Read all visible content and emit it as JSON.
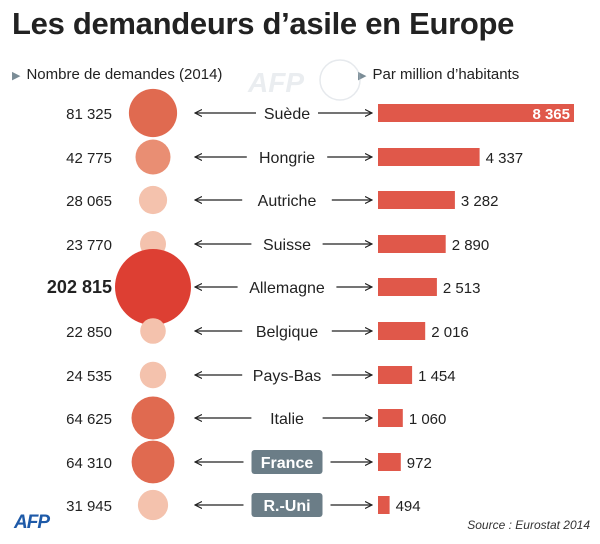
{
  "title": "Les demandeurs d’asile en Europe",
  "left_header": "Nombre de demandes (2014)",
  "right_header": "Par million d’habitants",
  "watermark": "AFP",
  "logo": "AFP",
  "source": "Source : Eurostat 2014",
  "colors": {
    "bubble_small": "#f4c2ad",
    "bubble_mid": "#e98e73",
    "bubble_large": "#e06a50",
    "bubble_max": "#dd3f33",
    "bar": "#e0584a",
    "highlight_label_bg": "#6b7d87",
    "arrow": "#222222"
  },
  "chart_data": {
    "type": "bar",
    "categories": [
      "Suède",
      "Hongrie",
      "Autriche",
      "Suisse",
      "Allemagne",
      "Belgique",
      "Pays-Bas",
      "Italie",
      "France",
      "R.-Uni"
    ],
    "demandes_labels": [
      "81 325",
      "42 775",
      "28 065",
      "23 770",
      "202 815",
      "22 850",
      "24 535",
      "64 625",
      "64 310",
      "31 945"
    ],
    "demandes": [
      81325,
      42775,
      28065,
      23770,
      202815,
      22850,
      24535,
      64625,
      64310,
      31945
    ],
    "par_million_labels": [
      "8 365",
      "4 337",
      "3 282",
      "2 890",
      "2 513",
      "2 016",
      "1 454",
      "1 060",
      "972",
      "494"
    ],
    "par_million": [
      8365,
      4337,
      3282,
      2890,
      2513,
      2016,
      1454,
      1060,
      972,
      494
    ],
    "highlighted": [
      "France",
      "R.-Uni"
    ],
    "bold_value": "Allemagne",
    "value_inside_bar": "Suède"
  }
}
